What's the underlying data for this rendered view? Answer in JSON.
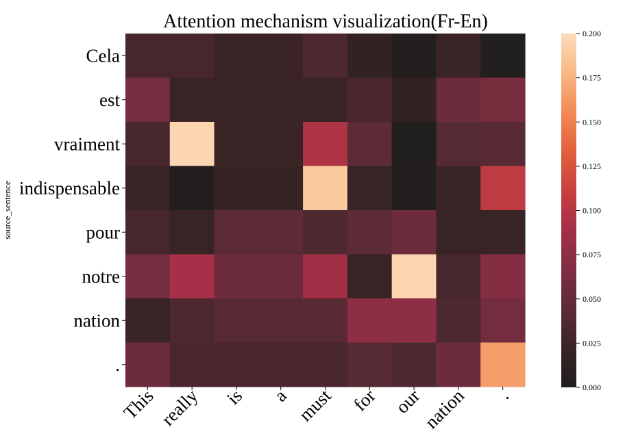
{
  "chart_data": {
    "type": "heatmap",
    "title": "Attention mechanism visualization(Fr-En)",
    "xlabel": "",
    "ylabel": "source_sentence",
    "x_categories": [
      "This",
      "really",
      "is",
      "a",
      "must",
      "for",
      "our",
      "nation",
      "."
    ],
    "y_categories": [
      "Cela",
      "est",
      "vraiment",
      "indispensable",
      "pour",
      "notre",
      "nation",
      "."
    ],
    "values": [
      [
        0.03,
        0.03,
        0.022,
        0.022,
        0.035,
        0.015,
        0.004,
        0.022,
        0.002
      ],
      [
        0.06,
        0.02,
        0.022,
        0.022,
        0.02,
        0.032,
        0.016,
        0.055,
        0.062
      ],
      [
        0.03,
        0.196,
        0.022,
        0.022,
        0.095,
        0.045,
        0.002,
        0.04,
        0.042
      ],
      [
        0.02,
        0.004,
        0.018,
        0.018,
        0.188,
        0.02,
        0.004,
        0.022,
        0.105
      ],
      [
        0.03,
        0.02,
        0.045,
        0.045,
        0.035,
        0.045,
        0.055,
        0.02,
        0.02
      ],
      [
        0.06,
        0.09,
        0.055,
        0.055,
        0.088,
        0.02,
        0.196,
        0.03,
        0.07
      ],
      [
        0.02,
        0.035,
        0.042,
        0.042,
        0.042,
        0.075,
        0.075,
        0.035,
        0.06
      ],
      [
        0.055,
        0.032,
        0.032,
        0.032,
        0.032,
        0.04,
        0.035,
        0.055,
        0.165
      ]
    ],
    "colorbar": {
      "range": [
        0.0,
        0.2
      ],
      "ticks": [
        "0.000",
        "0.025",
        "0.050",
        "0.075",
        "0.100",
        "0.125",
        "0.150",
        "0.175",
        "0.200"
      ],
      "colormap": [
        "#1f1e1e",
        "#3b2426",
        "#5c2b36",
        "#7f2e42",
        "#a42f47",
        "#c83f40",
        "#e0603c",
        "#f48a55",
        "#f8b885",
        "#fddcbc"
      ]
    }
  }
}
